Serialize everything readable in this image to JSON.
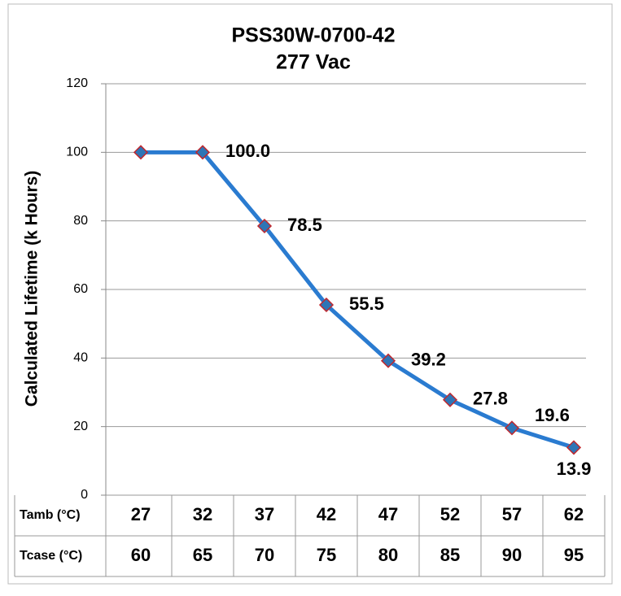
{
  "chart_data": {
    "type": "line",
    "title": [
      "PSS30W-0700-42",
      "277 Vac"
    ],
    "y_label": "Calculated Lifetime (k Hours)",
    "categories": [
      27,
      32,
      37,
      42,
      47,
      52,
      57,
      62
    ],
    "table_rows": [
      {
        "label": "Tamb (°C)",
        "values": [
          27,
          32,
          37,
          42,
          47,
          52,
          57,
          62
        ]
      },
      {
        "label": "Tcase (°C)",
        "values": [
          60,
          65,
          70,
          75,
          80,
          85,
          90,
          95
        ]
      }
    ],
    "values": [
      100,
      100,
      78.5,
      55.5,
      39.2,
      27.8,
      19.6,
      13.9
    ],
    "value_labels": [
      null,
      "100.0",
      "78.5",
      "55.5",
      "39.2",
      "27.8",
      "19.6",
      "13.9"
    ],
    "color": "#2a7bd0",
    "marker_color": "#2e75b6",
    "marker_edge": "#c0282e",
    "ylim": [
      0,
      120
    ],
    "yticks": [
      0,
      20,
      40,
      60,
      80,
      100,
      120
    ],
    "grid": true
  }
}
